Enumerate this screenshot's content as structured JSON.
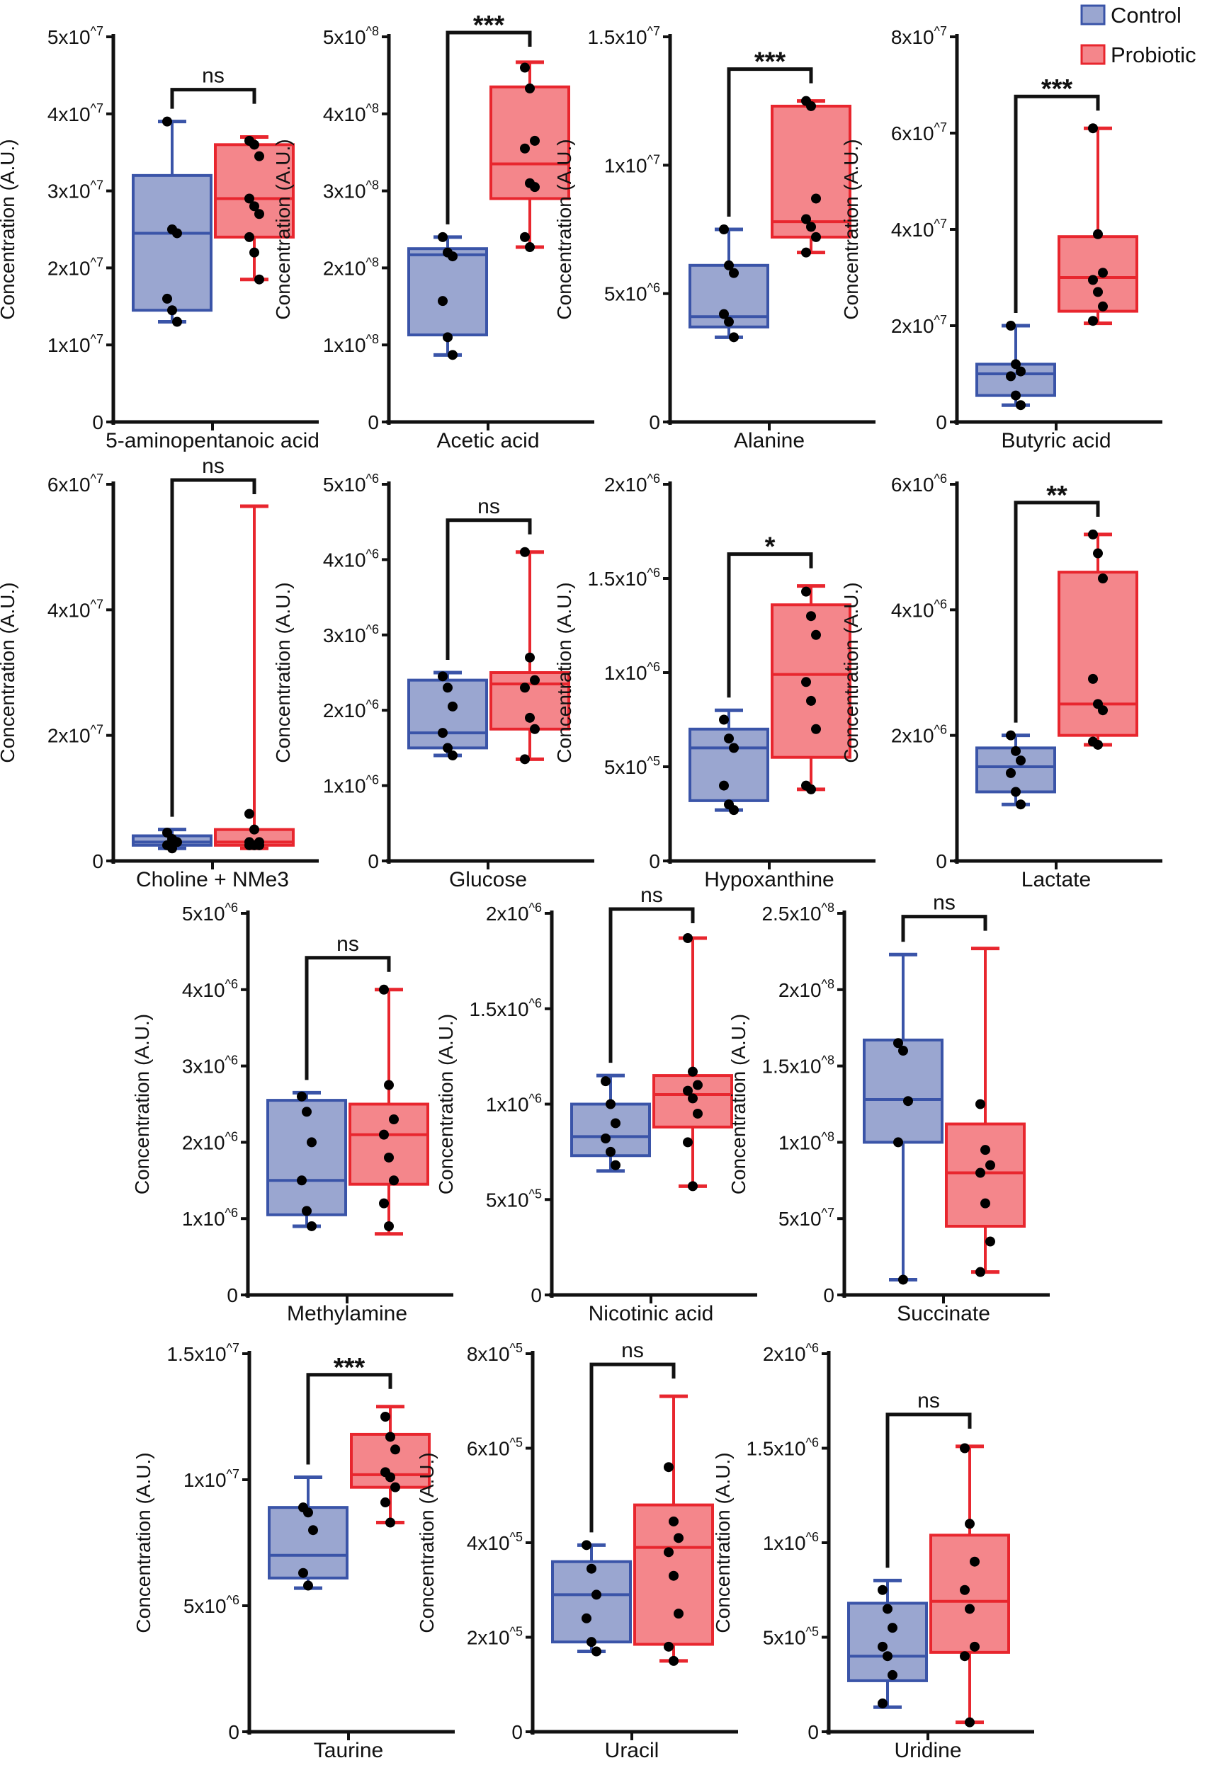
{
  "legend": {
    "items": [
      {
        "label": "Control",
        "fill": "#9aa6d0",
        "stroke": "#3a54a8"
      },
      {
        "label": "Probiotic",
        "fill": "#f4868b",
        "stroke": "#e8262e"
      }
    ],
    "placement": "top-right"
  },
  "chart_data": [
    {
      "type": "box",
      "xlabel": "5-aminopentanoic acid",
      "ylabel": "Concentration (A.U.)",
      "ylim": [
        0,
        50000000.0
      ],
      "ticks": [
        0,
        10000000.0,
        20000000.0,
        30000000.0,
        40000000.0,
        50000000.0
      ],
      "tick_labels": [
        "0",
        "1x10^7",
        "2x10^7",
        "3x10^7",
        "4x10^7",
        "5x10^7"
      ],
      "significance": "ns",
      "series": [
        {
          "name": "Control",
          "min": 13000000.0,
          "q1": 14500000.0,
          "median": 24500000.0,
          "q3": 32000000.0,
          "max": 39000000.0,
          "points": [
            39000000.0,
            25000000.0,
            24500000.0,
            16000000.0,
            14500000.0,
            13000000.0
          ]
        },
        {
          "name": "Probiotic",
          "min": 18500000.0,
          "q1": 24000000.0,
          "median": 29000000.0,
          "q3": 36000000.0,
          "max": 37000000.0,
          "points": [
            36500000.0,
            36000000.0,
            34500000.0,
            29000000.0,
            28000000.0,
            27000000.0,
            24000000.0,
            22000000.0,
            18500000.0
          ]
        }
      ]
    },
    {
      "type": "box",
      "xlabel": "Acetic acid",
      "ylabel": "Concentration (A.U.)",
      "ylim": [
        0,
        500000000.0
      ],
      "ticks": [
        0,
        100000000.0,
        200000000.0,
        300000000.0,
        400000000.0,
        500000000.0
      ],
      "tick_labels": [
        "0",
        "1x10^8",
        "2x10^8",
        "3x10^8",
        "4x10^8",
        "5x10^8"
      ],
      "significance": "***",
      "series": [
        {
          "name": "Control",
          "min": 87000000.0,
          "q1": 113000000.0,
          "median": 217000000.0,
          "q3": 225000000.0,
          "max": 240000000.0,
          "points": [
            240000000.0,
            220000000.0,
            215000000.0,
            157000000.0,
            110000000.0,
            87000000.0
          ]
        },
        {
          "name": "Probiotic",
          "min": 227000000.0,
          "q1": 290000000.0,
          "median": 335000000.0,
          "q3": 435000000.0,
          "max": 467000000.0,
          "points": [
            460000000.0,
            433000000.0,
            365000000.0,
            355000000.0,
            310000000.0,
            305000000.0,
            240000000.0,
            227000000.0
          ]
        }
      ]
    },
    {
      "type": "box",
      "xlabel": "Alanine",
      "ylabel": "Concentration (A.U.)",
      "ylim": [
        0,
        15000000.0
      ],
      "ticks": [
        0,
        5000000.0,
        10000000.0,
        15000000.0
      ],
      "tick_labels": [
        "0",
        "5x10^6",
        "1x10^7",
        "1.5x10^7"
      ],
      "significance": "***",
      "series": [
        {
          "name": "Control",
          "min": 3300000.0,
          "q1": 3700000.0,
          "median": 4100000.0,
          "q3": 6100000.0,
          "max": 7500000.0,
          "points": [
            7500000.0,
            6100000.0,
            5800000.0,
            4200000.0,
            3900000.0,
            3300000.0
          ]
        },
        {
          "name": "Probiotic",
          "min": 6600000.0,
          "q1": 7200000.0,
          "median": 7800000.0,
          "q3": 12300000.0,
          "max": 12500000.0,
          "points": [
            12500000.0,
            12300000.0,
            8700000.0,
            7900000.0,
            7600000.0,
            7200000.0,
            6600000.0
          ]
        }
      ]
    },
    {
      "type": "box",
      "xlabel": "Butyric acid",
      "ylabel": "Concentration (A.U.)",
      "ylim": [
        0,
        80000000.0
      ],
      "ticks": [
        0,
        20000000.0,
        40000000.0,
        60000000.0,
        80000000.0
      ],
      "tick_labels": [
        "0",
        "2x10^7",
        "4x10^7",
        "6x10^7",
        "8x10^7"
      ],
      "significance": "***",
      "series": [
        {
          "name": "Control",
          "min": 3500000.0,
          "q1": 5500000.0,
          "median": 10000000.0,
          "q3": 12000000.0,
          "max": 20000000.0,
          "points": [
            20000000.0,
            12000000.0,
            10500000.0,
            9500000.0,
            5500000.0,
            3500000.0
          ]
        },
        {
          "name": "Probiotic",
          "min": 20500000.0,
          "q1": 23000000.0,
          "median": 30000000.0,
          "q3": 38500000.0,
          "max": 61000000.0,
          "points": [
            61000000.0,
            39000000.0,
            31000000.0,
            29500000.0,
            27000000.0,
            24000000.0,
            21000000.0
          ]
        }
      ]
    },
    {
      "type": "box",
      "xlabel": "Choline + NMe3",
      "ylabel": "Concentration (A.U.)",
      "ylim": [
        0,
        60000000.0
      ],
      "ticks": [
        0,
        20000000.0,
        40000000.0,
        60000000.0
      ],
      "tick_labels": [
        "0",
        "2x10^7",
        "4x10^7",
        "6x10^7"
      ],
      "significance": "ns",
      "series": [
        {
          "name": "Control",
          "min": 2000000.0,
          "q1": 2500000.0,
          "median": 3000000.0,
          "q3": 4000000.0,
          "max": 5000000.0,
          "points": [
            4500000.0,
            3500000.0,
            3000000.0,
            2500000.0,
            2000000.0
          ]
        },
        {
          "name": "Probiotic",
          "min": 2000000.0,
          "q1": 2500000.0,
          "median": 3000000.0,
          "q3": 5000000.0,
          "max": 56500000.0,
          "points": [
            7500000.0,
            5000000.0,
            3000000.0,
            3000000.0,
            2500000.0,
            2500000.0,
            2500000.0
          ]
        }
      ]
    },
    {
      "type": "box",
      "xlabel": "Glucose",
      "ylabel": "Concentration (A.U.)",
      "ylim": [
        0,
        5000000.0
      ],
      "ticks": [
        0,
        1000000.0,
        2000000.0,
        3000000.0,
        4000000.0,
        5000000.0
      ],
      "tick_labels": [
        "0",
        "1x10^6",
        "2x10^6",
        "3x10^6",
        "4x10^6",
        "5x10^6"
      ],
      "significance": "ns",
      "series": [
        {
          "name": "Control",
          "min": 1400000.0,
          "q1": 1500000.0,
          "median": 1700000.0,
          "q3": 2400000.0,
          "max": 2500000.0,
          "points": [
            2450000.0,
            2300000.0,
            2050000.0,
            1700000.0,
            1500000.0,
            1400000.0
          ]
        },
        {
          "name": "Probiotic",
          "min": 1350000.0,
          "q1": 1750000.0,
          "median": 2350000.0,
          "q3": 2500000.0,
          "max": 4100000.0,
          "points": [
            4100000.0,
            2700000.0,
            2400000.0,
            2300000.0,
            1900000.0,
            1750000.0,
            1350000.0
          ]
        }
      ]
    },
    {
      "type": "box",
      "xlabel": "Hypoxanthine",
      "ylabel": "Concentration (A.U.)",
      "ylim": [
        0,
        2000000.0
      ],
      "ticks": [
        0,
        500000.0,
        1000000.0,
        1500000.0,
        2000000.0
      ],
      "tick_labels": [
        "0",
        "5x10^5",
        "1x10^6",
        "1.5x10^6",
        "2x10^6"
      ],
      "significance": "*",
      "series": [
        {
          "name": "Control",
          "min": 270000.0,
          "q1": 320000.0,
          "median": 600000.0,
          "q3": 700000.0,
          "max": 800000.0,
          "points": [
            750000.0,
            650000.0,
            600000.0,
            400000.0,
            300000.0,
            270000.0
          ]
        },
        {
          "name": "Probiotic",
          "min": 380000.0,
          "q1": 550000.0,
          "median": 990000.0,
          "q3": 1360000.0,
          "max": 1460000.0,
          "points": [
            1430000.0,
            1300000.0,
            1200000.0,
            950000.0,
            850000.0,
            700000.0,
            400000.0,
            380000.0
          ]
        }
      ]
    },
    {
      "type": "box",
      "xlabel": "Lactate",
      "ylabel": "Concentration (A.U.)",
      "ylim": [
        0,
        6000000.0
      ],
      "ticks": [
        0,
        2000000.0,
        4000000.0,
        6000000.0
      ],
      "tick_labels": [
        "0",
        "2x10^6",
        "4x10^6",
        "6x10^6"
      ],
      "significance": "**",
      "series": [
        {
          "name": "Control",
          "min": 900000.0,
          "q1": 1100000.0,
          "median": 1500000.0,
          "q3": 1800000.0,
          "max": 2000000.0,
          "points": [
            2000000.0,
            1750000.0,
            1600000.0,
            1400000.0,
            1100000.0,
            900000.0
          ]
        },
        {
          "name": "Probiotic",
          "min": 1850000.0,
          "q1": 2000000.0,
          "median": 2500000.0,
          "q3": 4600000.0,
          "max": 5200000.0,
          "points": [
            5200000.0,
            4900000.0,
            4500000.0,
            2900000.0,
            2500000.0,
            2400000.0,
            1900000.0,
            1850000.0
          ]
        }
      ]
    },
    {
      "type": "box",
      "xlabel": "Methylamine",
      "ylabel": "Concentration (A.U.)",
      "ylim": [
        0,
        5000000.0
      ],
      "ticks": [
        0,
        1000000.0,
        2000000.0,
        3000000.0,
        4000000.0,
        5000000.0
      ],
      "tick_labels": [
        "0",
        "1x10^6",
        "2x10^6",
        "3x10^6",
        "4x10^6",
        "5x10^6"
      ],
      "significance": "ns",
      "series": [
        {
          "name": "Control",
          "min": 900000.0,
          "q1": 1050000.0,
          "median": 1500000.0,
          "q3": 2550000.0,
          "max": 2650000.0,
          "points": [
            2600000.0,
            2400000.0,
            2000000.0,
            1500000.0,
            1100000.0,
            900000.0
          ]
        },
        {
          "name": "Probiotic",
          "min": 800000.0,
          "q1": 1450000.0,
          "median": 2100000.0,
          "q3": 2500000.0,
          "max": 4000000.0,
          "points": [
            4000000.0,
            2750000.0,
            2300000.0,
            2100000.0,
            1800000.0,
            1500000.0,
            1200000.0,
            900000.0
          ]
        }
      ]
    },
    {
      "type": "box",
      "xlabel": "Nicotinic acid",
      "ylabel": "Concentration (A.U.)",
      "ylim": [
        0,
        2000000.0
      ],
      "ticks": [
        0,
        500000.0,
        1000000.0,
        1500000.0,
        2000000.0
      ],
      "tick_labels": [
        "0",
        "5x10^5",
        "1x10^6",
        "1.5x10^6",
        "2x10^6"
      ],
      "significance": "ns",
      "series": [
        {
          "name": "Control",
          "min": 650000.0,
          "q1": 730000.0,
          "median": 830000.0,
          "q3": 1000000.0,
          "max": 1150000.0,
          "points": [
            1120000.0,
            1000000.0,
            900000.0,
            820000.0,
            750000.0,
            680000.0
          ]
        },
        {
          "name": "Probiotic",
          "min": 570000.0,
          "q1": 880000.0,
          "median": 1050000.0,
          "q3": 1150000.0,
          "max": 1870000.0,
          "points": [
            1870000.0,
            1170000.0,
            1100000.0,
            1070000.0,
            1030000.0,
            950000.0,
            800000.0,
            570000.0
          ]
        }
      ]
    },
    {
      "type": "box",
      "xlabel": "Succinate",
      "ylabel": "Concentration (A.U.)",
      "ylim": [
        0,
        250000000.0
      ],
      "ticks": [
        0,
        50000000.0,
        100000000.0,
        150000000.0,
        200000000.0,
        250000000.0
      ],
      "tick_labels": [
        "0",
        "5x10^7",
        "1x10^8",
        "1.5x10^8",
        "2x10^8",
        "2.5x10^8"
      ],
      "significance": "ns",
      "series": [
        {
          "name": "Control",
          "min": 10000000.0,
          "q1": 100000000.0,
          "median": 128000000.0,
          "q3": 167000000.0,
          "max": 223000000.0,
          "points": [
            165000000.0,
            160000000.0,
            127000000.0,
            100000000.0,
            10000000.0
          ]
        },
        {
          "name": "Probiotic",
          "min": 15000000.0,
          "q1": 45000000.0,
          "median": 80000000.0,
          "q3": 112000000.0,
          "max": 227000000.0,
          "points": [
            125000000.0,
            95000000.0,
            85000000.0,
            80000000.0,
            60000000.0,
            35000000.0,
            15000000.0
          ]
        }
      ]
    },
    {
      "type": "box",
      "xlabel": "Taurine",
      "ylabel": "Concentration (A.U.)",
      "ylim": [
        0,
        15000000.0
      ],
      "ticks": [
        0,
        5000000.0,
        10000000.0,
        15000000.0
      ],
      "tick_labels": [
        "0",
        "5x10^6",
        "1x10^7",
        "1.5x10^7"
      ],
      "significance": "***",
      "series": [
        {
          "name": "Control",
          "min": 5700000.0,
          "q1": 6100000.0,
          "median": 7000000.0,
          "q3": 8900000.0,
          "max": 10100000.0,
          "points": [
            8900000.0,
            8700000.0,
            8000000.0,
            6300000.0,
            5800000.0
          ]
        },
        {
          "name": "Probiotic",
          "min": 8300000.0,
          "q1": 9700000.0,
          "median": 10200000.0,
          "q3": 11800000.0,
          "max": 12900000.0,
          "points": [
            12500000.0,
            11700000.0,
            11200000.0,
            10300000.0,
            10100000.0,
            9700000.0,
            9100000.0,
            8300000.0
          ]
        }
      ]
    },
    {
      "type": "box",
      "xlabel": "Uracil",
      "ylabel": "Concentration (A.U.)",
      "ylim": [
        0,
        800000.0
      ],
      "ticks": [
        0,
        200000.0,
        400000.0,
        600000.0,
        800000.0
      ],
      "tick_labels": [
        "0",
        "2x10^5",
        "4x10^5",
        "6x10^5",
        "8x10^5"
      ],
      "significance": "ns",
      "series": [
        {
          "name": "Control",
          "min": 170000.0,
          "q1": 190000.0,
          "median": 290000.0,
          "q3": 360000.0,
          "max": 395000.0,
          "points": [
            395000.0,
            345000.0,
            290000.0,
            240000.0,
            190000.0,
            170000.0
          ]
        },
        {
          "name": "Probiotic",
          "min": 150000.0,
          "q1": 185000.0,
          "median": 390000.0,
          "q3": 480000.0,
          "max": 710000.0,
          "points": [
            560000.0,
            445000.0,
            410000.0,
            380000.0,
            330000.0,
            250000.0,
            180000.0,
            150000.0
          ]
        }
      ]
    },
    {
      "type": "box",
      "xlabel": "Uridine",
      "ylabel": "Concentration (A.U.)",
      "ylim": [
        0,
        2000000.0
      ],
      "ticks": [
        0,
        500000.0,
        1000000.0,
        1500000.0,
        2000000.0
      ],
      "tick_labels": [
        "0",
        "5x10^5",
        "1x10^6",
        "1.5x10^6",
        "2x10^6"
      ],
      "significance": "ns",
      "series": [
        {
          "name": "Control",
          "min": 130000.0,
          "q1": 270000.0,
          "median": 400000.0,
          "q3": 680000.0,
          "max": 800000.0,
          "points": [
            750000.0,
            650000.0,
            550000.0,
            450000.0,
            400000.0,
            300000.0,
            150000.0
          ]
        },
        {
          "name": "Probiotic",
          "min": 50000.0,
          "q1": 420000.0,
          "median": 690000.0,
          "q3": 1040000.0,
          "max": 1510000.0,
          "points": [
            1500000.0,
            1100000.0,
            900000.0,
            750000.0,
            650000.0,
            450000.0,
            400000.0,
            50000.0
          ]
        }
      ]
    }
  ]
}
